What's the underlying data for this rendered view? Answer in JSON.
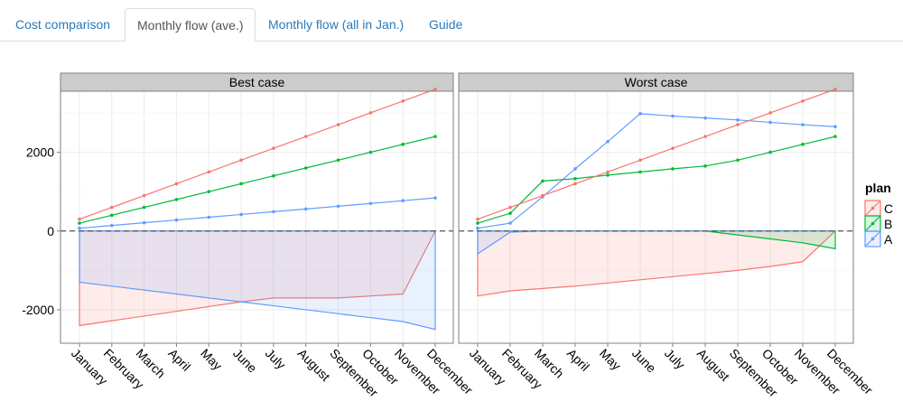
{
  "tabs": [
    {
      "label": "Cost comparison",
      "active": false
    },
    {
      "label": "Monthly flow (ave.)",
      "active": true
    },
    {
      "label": "Monthly flow (all in Jan.)",
      "active": false
    },
    {
      "label": "Guide",
      "active": false
    }
  ],
  "chart_data": {
    "type": "line",
    "x": [
      "January",
      "February",
      "March",
      "April",
      "May",
      "June",
      "July",
      "August",
      "September",
      "October",
      "November",
      "December"
    ],
    "ylim": [
      -2850,
      3550
    ],
    "y_ticks": [
      2000,
      0,
      -2000
    ],
    "y_tick_labels": [
      "2000",
      "0",
      "-2000"
    ],
    "grid": true,
    "reference_line": 0,
    "legend": {
      "title": "plan",
      "entries": [
        "C",
        "B",
        "A"
      ],
      "position": "right"
    },
    "colors": {
      "C": "#f8766d",
      "B": "#00ba38",
      "A": "#619cff"
    },
    "panels": [
      {
        "title": "Best case",
        "series": [
          {
            "name": "C",
            "values": [
              300,
              600,
              900,
              1200,
              1500,
              1800,
              2100,
              2400,
              2700,
              3000,
              3300,
              3600
            ]
          },
          {
            "name": "B",
            "values": [
              200,
              400,
              600,
              800,
              1000,
              1200,
              1400,
              1600,
              1800,
              2000,
              2200,
              2400
            ]
          },
          {
            "name": "A",
            "values": [
              70,
              140,
              210,
              280,
              350,
              420,
              490,
              560,
              630,
              700,
              770,
              840
            ]
          }
        ],
        "ribbons": [
          {
            "name": "C",
            "lower": [
              -2400,
              -2280,
              -2160,
              -2040,
              -1920,
              -1800,
              -1700,
              -1700,
              -1700,
              -1650,
              -1600,
              0
            ]
          },
          {
            "name": "A",
            "lower": [
              -1300,
              -1400,
              -1500,
              -1600,
              -1700,
              -1800,
              -1900,
              -2000,
              -2100,
              -2200,
              -2300,
              -2500
            ]
          }
        ]
      },
      {
        "title": "Worst case",
        "series": [
          {
            "name": "C",
            "values": [
              300,
              600,
              900,
              1200,
              1500,
              1800,
              2100,
              2400,
              2700,
              3000,
              3300,
              3600
            ]
          },
          {
            "name": "B",
            "values": [
              200,
              450,
              1270,
              1330,
              1420,
              1500,
              1580,
              1650,
              1800,
              2000,
              2200,
              2400
            ]
          },
          {
            "name": "A",
            "values": [
              70,
              200,
              870,
              1580,
              2270,
              2980,
              2920,
              2870,
              2820,
              2760,
              2700,
              2650
            ]
          }
        ],
        "ribbons": [
          {
            "name": "C",
            "lower": [
              -1650,
              -1520,
              -1460,
              -1400,
              -1320,
              -1240,
              -1160,
              -1080,
              -1000,
              -900,
              -780,
              0
            ]
          },
          {
            "name": "B",
            "lower": [
              0,
              0,
              0,
              0,
              0,
              0,
              0,
              0,
              -100,
              -200,
              -300,
              -450
            ]
          },
          {
            "name": "A",
            "lower": [
              -580,
              -30,
              0,
              0,
              0,
              0,
              0,
              0,
              0,
              0,
              0,
              0
            ]
          }
        ]
      }
    ]
  }
}
